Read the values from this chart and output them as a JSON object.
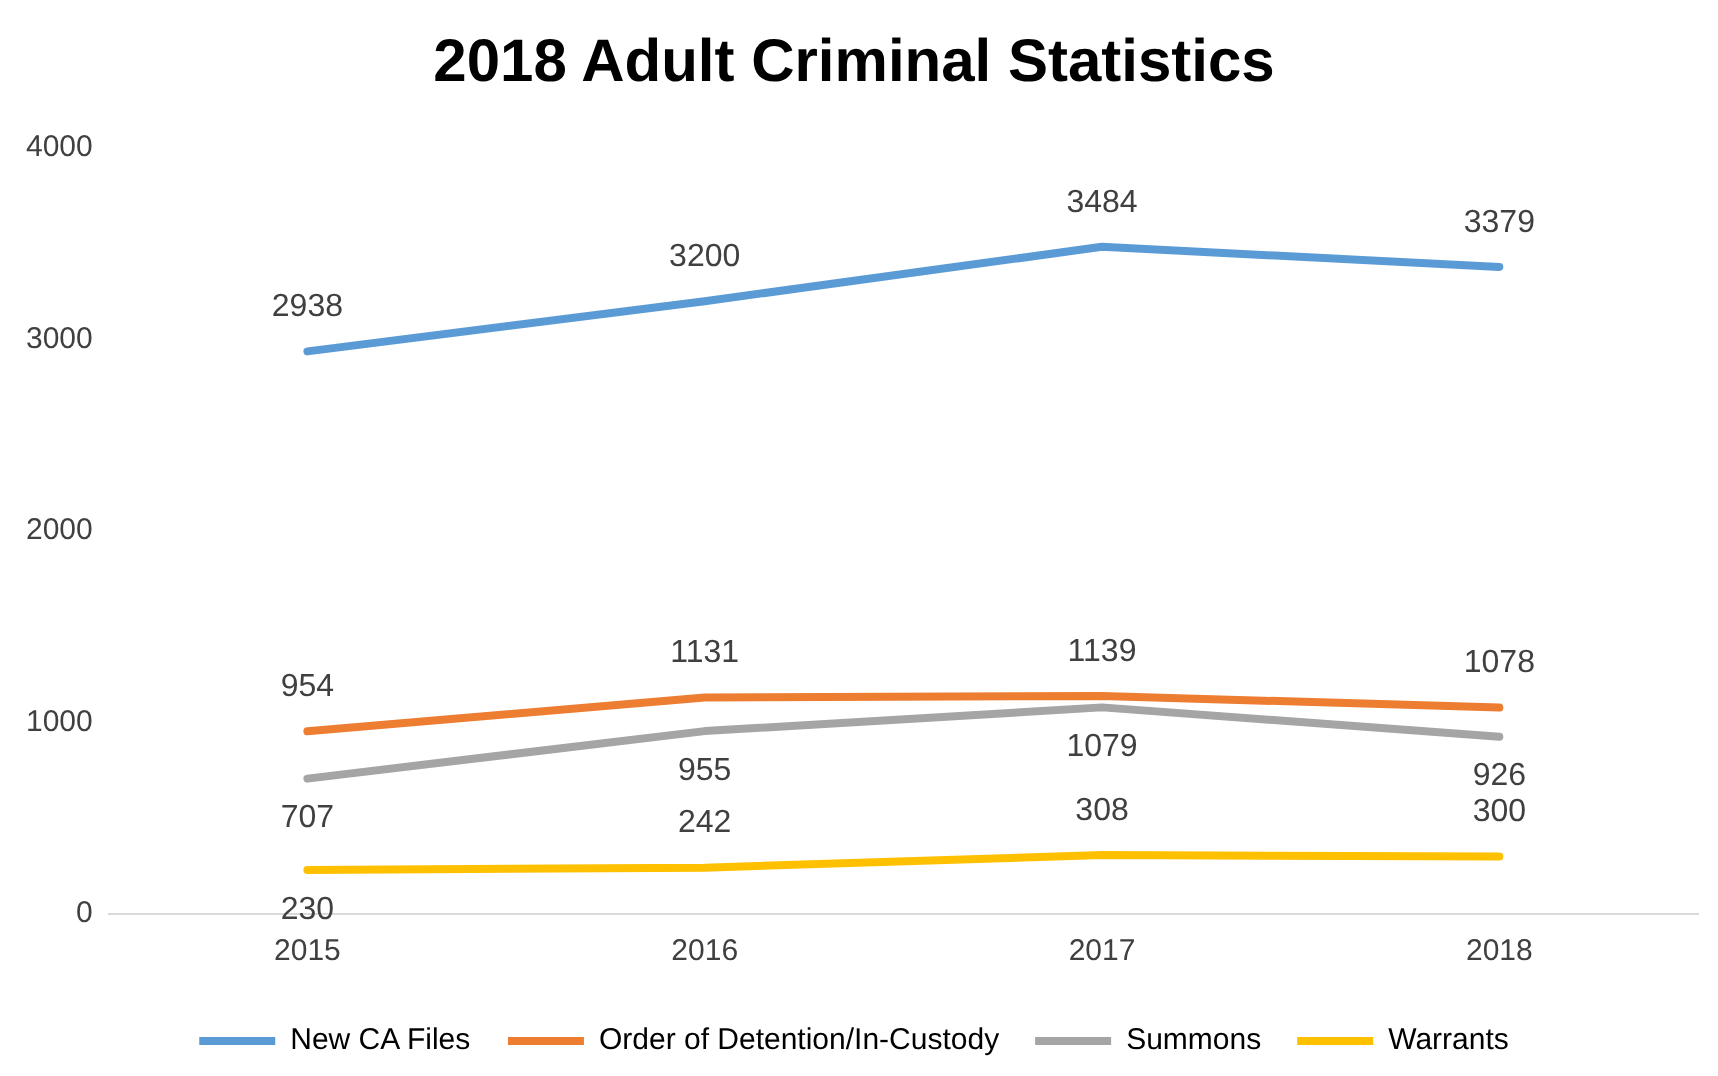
{
  "chart_data": {
    "type": "line",
    "title": "2018 Adult Criminal Statistics",
    "categories": [
      "2015",
      "2016",
      "2017",
      "2018"
    ],
    "series": [
      {
        "name": "New CA Files",
        "color": "#5b9bd5",
        "values": [
          2938,
          3200,
          3484,
          3379
        ]
      },
      {
        "name": "Order of Detention/In-Custody",
        "color": "#ed7d31",
        "values": [
          954,
          1131,
          1139,
          1078
        ]
      },
      {
        "name": "Summons",
        "color": "#a5a5a5",
        "values": [
          707,
          955,
          1079,
          926
        ]
      },
      {
        "name": "Warrants",
        "color": "#ffc000",
        "values": [
          230,
          242,
          308,
          300
        ]
      }
    ],
    "ylim": [
      0,
      4000
    ],
    "yticks": [
      0,
      1000,
      2000,
      3000,
      4000
    ],
    "grid": false,
    "legend": "bottom",
    "marker": "none",
    "line_style": "solid",
    "data_labels": true
  }
}
